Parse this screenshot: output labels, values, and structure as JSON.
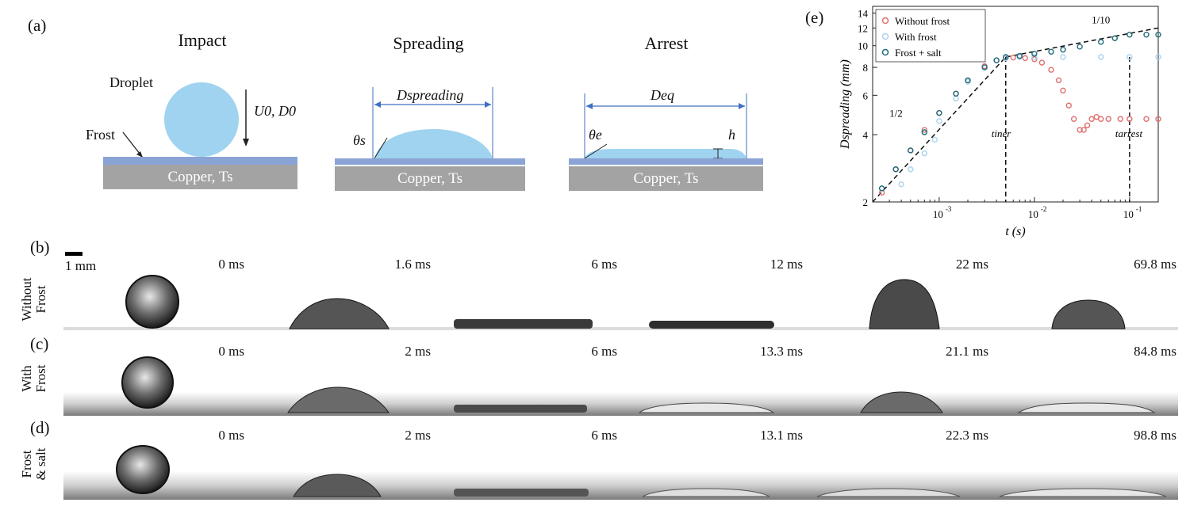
{
  "panel_a": {
    "label": "(a)",
    "stages": [
      "Impact",
      "Spreading",
      "Arrest"
    ],
    "droplet_label": "Droplet",
    "frost_label": "Frost",
    "velocity_label": "U0, D0",
    "substrate_label": "Copper, Ts",
    "spreading_diameter_label": "Dspreading",
    "eq_diameter_label": "Deq",
    "theta_s_label": "θs",
    "theta_e_label": "θe",
    "height_label": "h",
    "colors": {
      "droplet": "#9fd3ef",
      "frost": "#8aa4d6",
      "copper": "#a3a3a3",
      "dimension": "#3d6fc4"
    }
  },
  "panel_b": {
    "label": "(b)",
    "scale_bar": "1 mm",
    "row_label_lines": [
      "Without",
      "Frost"
    ],
    "times": [
      "0 ms",
      "1.6 ms",
      "6 ms",
      "12 ms",
      "22 ms",
      "69.8 ms"
    ]
  },
  "panel_c": {
    "label": "(c)",
    "row_label_lines": [
      "With",
      "Frost"
    ],
    "times": [
      "0 ms",
      "2 ms",
      "6 ms",
      "13.3 ms",
      "21.1 ms",
      "84.8 ms"
    ]
  },
  "panel_d": {
    "label": "(d)",
    "row_label_lines": [
      "Frost",
      "& salt"
    ],
    "times": [
      "0 ms",
      "2 ms",
      "6 ms",
      "13.1 ms",
      "22.3 ms",
      "98.8 ms"
    ]
  },
  "chart_data": {
    "label": "(e)",
    "type": "scatter",
    "xlabel": "t (s)",
    "ylabel": "Dspreading (mm)",
    "xscale": "log",
    "yscale": "log",
    "xlim": [
      0.0002,
      0.2
    ],
    "ylim": [
      2,
      15
    ],
    "xticks": [
      {
        "value": 0.001,
        "label": "10-3"
      },
      {
        "value": 0.01,
        "label": "10-2"
      },
      {
        "value": 0.1,
        "label": "10-1"
      }
    ],
    "yticks": [
      2,
      4,
      6,
      8,
      10,
      12,
      14
    ],
    "legend_position": "top-left",
    "series": [
      {
        "name": "Without frost",
        "color": "#e07070",
        "x": [
          0.00025,
          0.00035,
          0.0005,
          0.0007,
          0.001,
          0.0015,
          0.002,
          0.003,
          0.004,
          0.005,
          0.006,
          0.008,
          0.01,
          0.012,
          0.015,
          0.018,
          0.02,
          0.023,
          0.026,
          0.03,
          0.033,
          0.036,
          0.04,
          0.045,
          0.05,
          0.06,
          0.08,
          0.1,
          0.15,
          0.2
        ],
        "y": [
          2.2,
          2.8,
          3.4,
          4.2,
          5.0,
          6.1,
          7.0,
          8.1,
          8.6,
          8.8,
          8.85,
          8.8,
          8.7,
          8.4,
          7.8,
          7.0,
          6.3,
          5.4,
          4.7,
          4.2,
          4.2,
          4.4,
          4.7,
          4.8,
          4.7,
          4.7,
          4.7,
          4.7,
          4.7,
          4.7
        ]
      },
      {
        "name": "With frost",
        "color": "#a9d2ee",
        "x": [
          0.0004,
          0.0005,
          0.0007,
          0.0009,
          0.001,
          0.0015,
          0.002,
          0.003,
          0.004,
          0.005,
          0.007,
          0.01,
          0.02,
          0.05,
          0.1,
          0.2
        ],
        "y": [
          2.4,
          2.8,
          3.3,
          3.8,
          4.6,
          5.8,
          6.9,
          8.0,
          8.6,
          8.8,
          8.9,
          8.9,
          8.9,
          8.9,
          8.9,
          8.9
        ]
      },
      {
        "name": "Frost + salt",
        "color": "#1f6b7a",
        "x": [
          0.00025,
          0.00035,
          0.0005,
          0.0007,
          0.001,
          0.0015,
          0.002,
          0.003,
          0.004,
          0.005,
          0.007,
          0.01,
          0.015,
          0.02,
          0.03,
          0.05,
          0.07,
          0.1,
          0.15,
          0.2
        ],
        "y": [
          2.3,
          2.8,
          3.4,
          4.1,
          5.0,
          6.1,
          7.0,
          8.0,
          8.6,
          8.9,
          9.0,
          9.2,
          9.4,
          9.6,
          9.9,
          10.4,
          10.8,
          11.2,
          11.2,
          11.2
        ]
      }
    ],
    "fit_lines": [
      {
        "slope_label": "1/2",
        "x": [
          0.0002,
          0.005
        ],
        "y": [
          2.0,
          8.9
        ]
      },
      {
        "slope_label": "1/10",
        "x": [
          0.005,
          0.2
        ],
        "y": [
          8.9,
          12.0
        ]
      }
    ],
    "vertical_lines": [
      {
        "x": 0.005,
        "label": "tiner"
      },
      {
        "x": 0.1,
        "label": "tarrest"
      }
    ]
  }
}
